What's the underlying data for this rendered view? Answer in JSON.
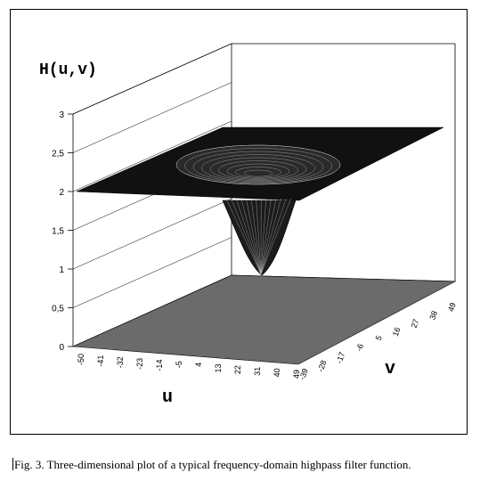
{
  "figure": {
    "caption_prefix": "Fig. 3.",
    "caption_text": "Three-dimensional plot of a typical frequency-domain highpass filter function."
  },
  "chart_data": {
    "type": "surface",
    "zlabel": "H(u,v)",
    "xlabel": "u",
    "ylabel": "v",
    "z_ticks": [
      "0",
      "0,5",
      "1",
      "1,5",
      "2",
      "2,5",
      "3"
    ],
    "u_ticks": [
      "-50",
      "-41",
      "-32",
      "-23",
      "-14",
      "-5",
      "4",
      "13",
      "22",
      "31",
      "40",
      "49"
    ],
    "v_ticks": [
      "-39",
      "-28",
      "-17",
      "-6",
      "5",
      "16",
      "27",
      "38",
      "49"
    ],
    "zlim": [
      0,
      3
    ],
    "surface_plateau": 2,
    "surface_minimum": 1,
    "colors": {
      "surface": "#111111",
      "floor": "#6b6b6b",
      "mesh": "#bfbfbf"
    }
  }
}
